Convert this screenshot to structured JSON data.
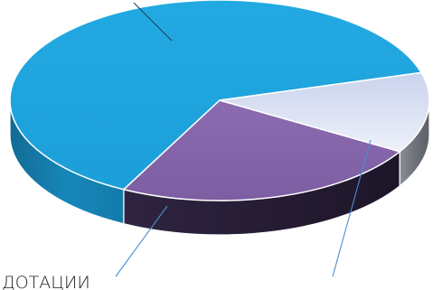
{
  "chart_data": {
    "type": "pie",
    "style": "3d",
    "title": "",
    "slices": [
      {
        "label": "",
        "value": 63,
        "color": "#1ba1dc"
      },
      {
        "label": "",
        "value": 24,
        "color": "#8566a8"
      },
      {
        "label": "ДОТАЦИИ",
        "value": 13,
        "color": "#dde3f2"
      }
    ],
    "start_angle_deg": -16,
    "direction": "counterclockwise",
    "leader_lines": true
  }
}
